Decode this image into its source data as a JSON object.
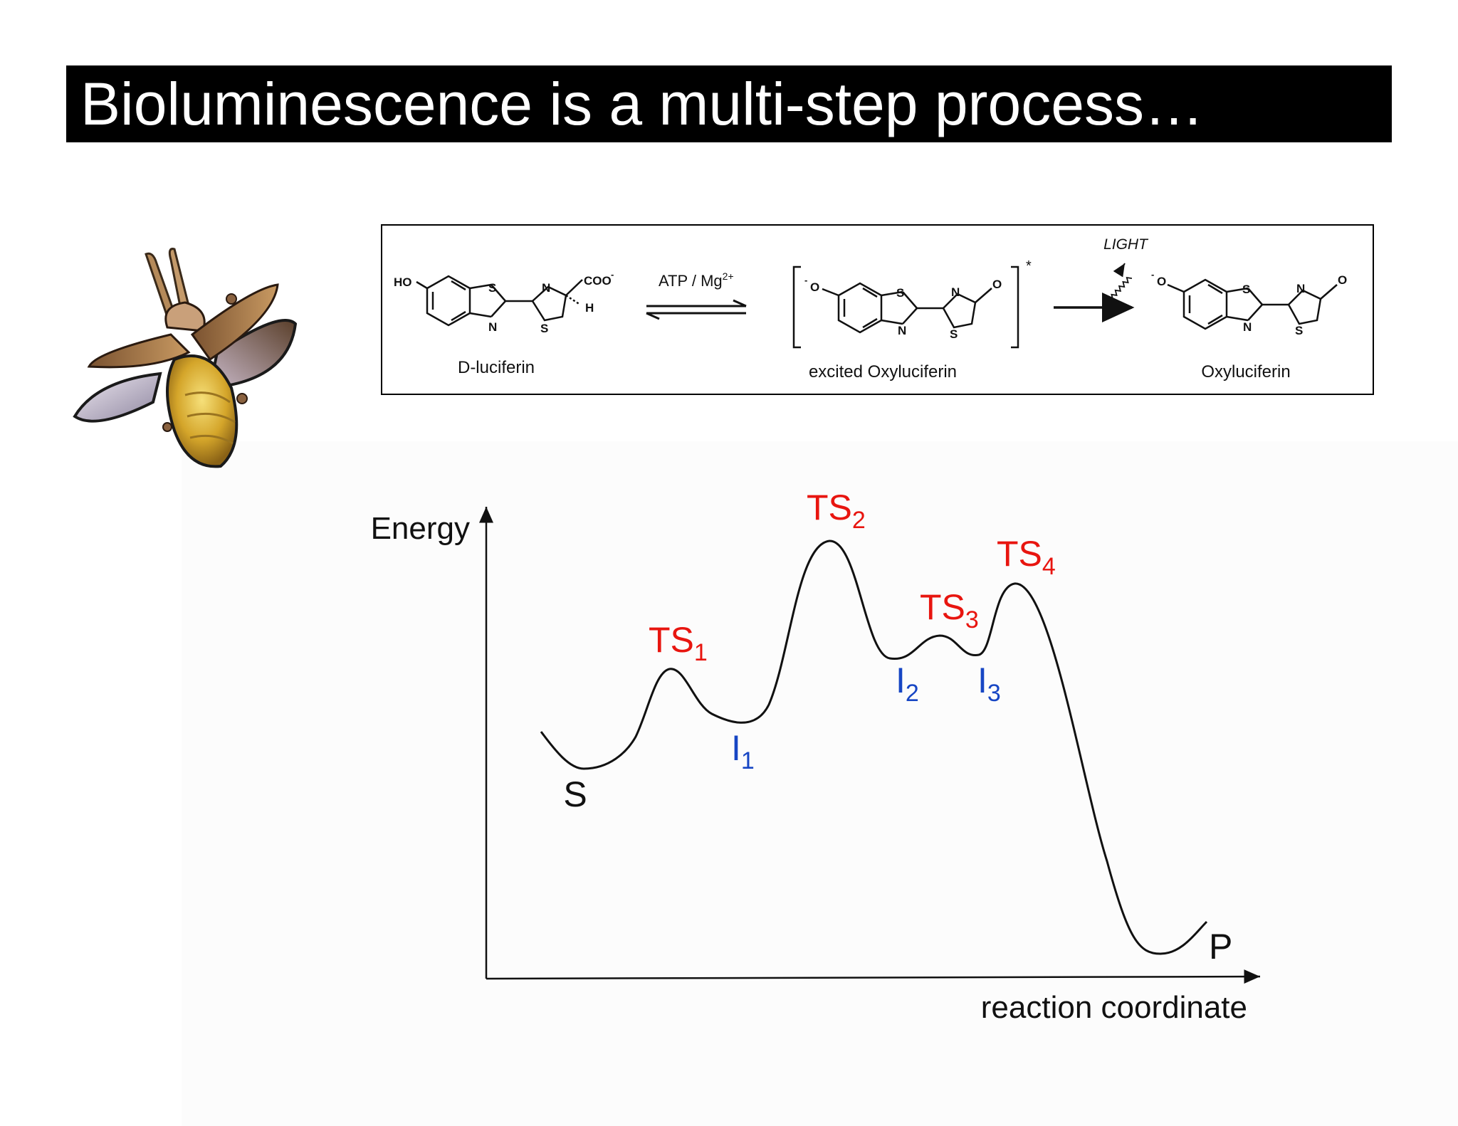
{
  "title": "Bioluminescence is a multi-step process…",
  "reaction": {
    "reactant_label": "D-luciferin",
    "reactant_groups": {
      "ho": "HO",
      "coo": "COO",
      "coo_charge": "-",
      "h": "H"
    },
    "arrow1_label": "ATP / Mg",
    "arrow1_sup": "2+",
    "intermediate_label": "excited Oxyluciferin",
    "excited_mark": "*",
    "anion": "O",
    "anion_charge": "-",
    "light_label": "LIGHT",
    "product_label": "Oxyluciferin",
    "atoms": {
      "s": "S",
      "n": "N",
      "o": "O"
    }
  },
  "energy_diagram": {
    "y_axis_label": "Energy",
    "x_axis_label": "reaction coordinate",
    "colors": {
      "transition_state": "#e8150f",
      "intermediate": "#1746c4",
      "curve": "#111111"
    },
    "states": [
      {
        "id": "S",
        "base": "S",
        "sub": "",
        "kind": "start"
      },
      {
        "id": "TS1",
        "base": "TS",
        "sub": "1",
        "kind": "transition_state"
      },
      {
        "id": "I1",
        "base": "I",
        "sub": "1",
        "kind": "intermediate"
      },
      {
        "id": "TS2",
        "base": "TS",
        "sub": "2",
        "kind": "transition_state"
      },
      {
        "id": "I2",
        "base": "I",
        "sub": "2",
        "kind": "intermediate"
      },
      {
        "id": "TS3",
        "base": "TS",
        "sub": "3",
        "kind": "transition_state"
      },
      {
        "id": "I3",
        "base": "I",
        "sub": "3",
        "kind": "intermediate"
      },
      {
        "id": "TS4",
        "base": "TS",
        "sub": "4",
        "kind": "transition_state"
      },
      {
        "id": "P",
        "base": "P",
        "sub": "",
        "kind": "end"
      }
    ]
  }
}
